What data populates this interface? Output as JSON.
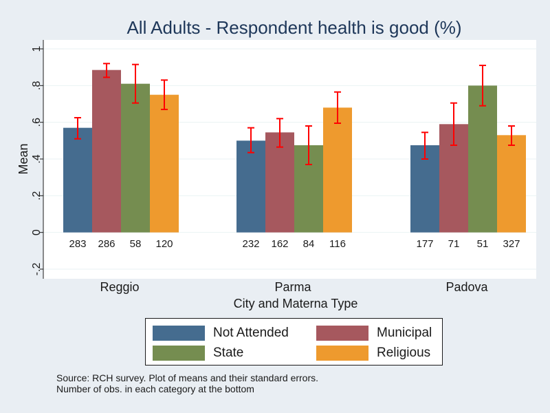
{
  "colors": {
    "background": "#e9eef3",
    "plot_area": "#ffffff",
    "grid": "#eaf2f3",
    "error_bar": "#ff0000",
    "text": "#1a1a1a"
  },
  "chart_data": {
    "type": "bar",
    "title": "All Adults - Respondent health is good (%)",
    "xlabel": "City and Materna Type",
    "ylabel": "Mean",
    "ylim": [
      -0.2,
      1
    ],
    "yticks": [
      -0.2,
      0,
      0.2,
      0.4,
      0.6,
      0.8,
      1
    ],
    "ytick_labels": [
      "-.2",
      "0",
      ".2",
      ".4",
      ".6",
      ".8",
      "1"
    ],
    "grid": true,
    "legend_position": "bottom",
    "categories": [
      "Reggio",
      "Parma",
      "Padova"
    ],
    "series": [
      {
        "name": "Not Attended",
        "color": "#456c8f",
        "values": [
          0.57,
          0.5,
          0.475
        ],
        "ci_low": [
          0.51,
          0.435,
          0.4
        ],
        "ci_high": [
          0.625,
          0.57,
          0.545
        ],
        "n_obs": [
          "283",
          "232",
          "177"
        ]
      },
      {
        "name": "Municipal",
        "color": "#a6585e",
        "values": [
          0.885,
          0.545,
          0.59
        ],
        "ci_low": [
          0.845,
          0.465,
          0.475
        ],
        "ci_high": [
          0.92,
          0.62,
          0.705
        ],
        "n_obs": [
          "286",
          "162",
          "71"
        ]
      },
      {
        "name": "State",
        "color": "#758d50",
        "values": [
          0.81,
          0.475,
          0.8
        ],
        "ci_low": [
          0.705,
          0.37,
          0.69
        ],
        "ci_high": [
          0.915,
          0.58,
          0.91
        ],
        "n_obs": [
          "58",
          "84",
          "51"
        ]
      },
      {
        "name": "Religious",
        "color": "#ee9a2e",
        "values": [
          0.75,
          0.68,
          0.53
        ],
        "ci_low": [
          0.67,
          0.595,
          0.475
        ],
        "ci_high": [
          0.83,
          0.765,
          0.58
        ],
        "n_obs": [
          "120",
          "116",
          "327"
        ]
      }
    ]
  },
  "notes": [
    "Source: RCH survey. Plot of means and their standard errors.",
    "Number of obs. in each category at the bottom"
  ]
}
